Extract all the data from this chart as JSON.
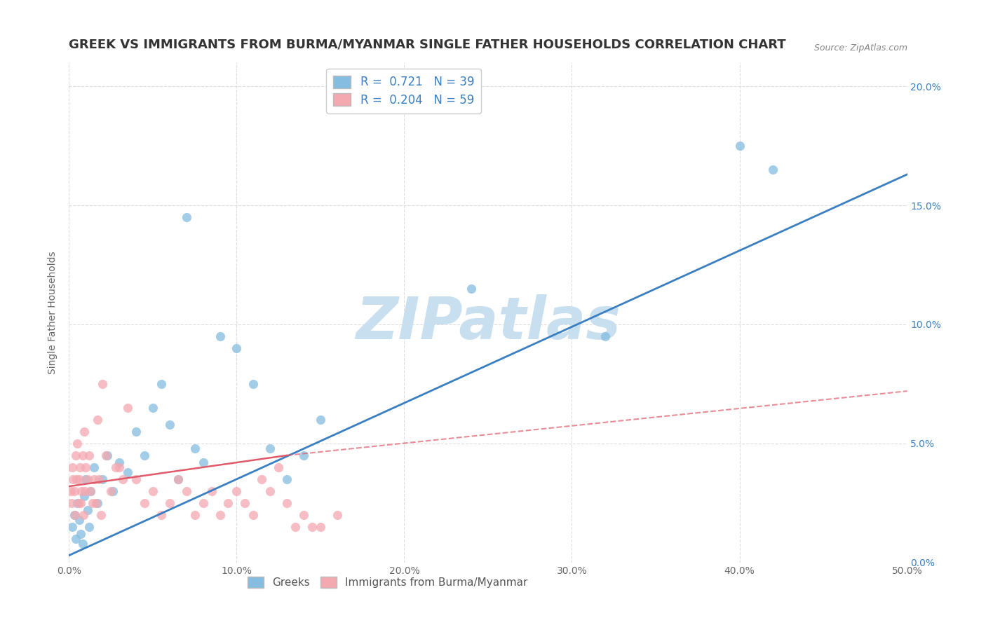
{
  "title": "GREEK VS IMMIGRANTS FROM BURMA/MYANMAR SINGLE FATHER HOUSEHOLDS CORRELATION CHART",
  "source": "Source: ZipAtlas.com",
  "xlabel": "",
  "ylabel": "Single Father Households",
  "xlim": [
    0.0,
    50.0
  ],
  "ylim": [
    0.0,
    21.0
  ],
  "xticks": [
    0.0,
    10.0,
    20.0,
    30.0,
    40.0,
    50.0
  ],
  "yticks": [
    0.0,
    5.0,
    10.0,
    15.0,
    20.0
  ],
  "greek_R": 0.721,
  "greek_N": 39,
  "burma_R": 0.204,
  "burma_N": 59,
  "greek_color": "#85bde0",
  "burma_color": "#f4a8b0",
  "greek_line_color": "#3a7fc1",
  "burma_line_color": "#e05a6a",
  "legend_label_greek": "Greeks",
  "legend_label_burma": "Immigrants from Burma/Myanmar",
  "greek_x": [
    0.2,
    0.3,
    0.4,
    0.5,
    0.6,
    0.7,
    0.8,
    0.9,
    1.0,
    1.1,
    1.2,
    1.3,
    1.5,
    1.7,
    2.0,
    2.3,
    2.6,
    3.0,
    3.5,
    4.0,
    4.5,
    5.0,
    5.5,
    6.0,
    6.5,
    7.0,
    7.5,
    8.0,
    9.0,
    10.0,
    11.0,
    12.0,
    13.0,
    14.0,
    15.0,
    24.0,
    32.0,
    40.0,
    42.0
  ],
  "greek_y": [
    1.5,
    2.0,
    1.0,
    2.5,
    1.8,
    1.2,
    0.8,
    2.8,
    3.5,
    2.2,
    1.5,
    3.0,
    4.0,
    2.5,
    3.5,
    4.5,
    3.0,
    4.2,
    3.8,
    5.5,
    4.5,
    6.5,
    7.5,
    5.8,
    3.5,
    14.5,
    4.8,
    4.2,
    9.5,
    9.0,
    7.5,
    4.8,
    3.5,
    4.5,
    6.0,
    11.5,
    9.5,
    17.5,
    16.5
  ],
  "burma_x": [
    0.1,
    0.15,
    0.2,
    0.25,
    0.3,
    0.35,
    0.4,
    0.45,
    0.5,
    0.55,
    0.6,
    0.65,
    0.7,
    0.75,
    0.8,
    0.85,
    0.9,
    0.95,
    1.0,
    1.1,
    1.2,
    1.3,
    1.4,
    1.5,
    1.6,
    1.7,
    1.8,
    1.9,
    2.0,
    2.2,
    2.5,
    2.8,
    3.0,
    3.2,
    3.5,
    4.0,
    4.5,
    5.0,
    5.5,
    6.0,
    6.5,
    7.0,
    7.5,
    8.0,
    8.5,
    9.0,
    9.5,
    10.0,
    10.5,
    11.0,
    11.5,
    12.0,
    12.5,
    13.0,
    13.5,
    14.0,
    14.5,
    15.0,
    16.0
  ],
  "burma_y": [
    3.0,
    2.5,
    4.0,
    3.5,
    3.0,
    2.0,
    4.5,
    3.5,
    5.0,
    2.5,
    3.5,
    4.0,
    2.5,
    3.0,
    4.5,
    2.0,
    5.5,
    3.0,
    4.0,
    3.5,
    4.5,
    3.0,
    2.5,
    3.5,
    2.5,
    6.0,
    3.5,
    2.0,
    7.5,
    4.5,
    3.0,
    4.0,
    4.0,
    3.5,
    6.5,
    3.5,
    2.5,
    3.0,
    2.0,
    2.5,
    3.5,
    3.0,
    2.0,
    2.5,
    3.0,
    2.0,
    2.5,
    3.0,
    2.5,
    2.0,
    3.5,
    3.0,
    4.0,
    2.5,
    1.5,
    2.0,
    1.5,
    1.5,
    2.0
  ],
  "greek_line_x0": 0.0,
  "greek_line_y0": 0.3,
  "greek_line_x1": 50.0,
  "greek_line_y1": 16.3,
  "burma_solid_x0": 0.0,
  "burma_solid_y0": 3.2,
  "burma_solid_x1": 13.0,
  "burma_solid_y1": 4.5,
  "burma_dash_x0": 13.0,
  "burma_dash_y0": 4.5,
  "burma_dash_x1": 50.0,
  "burma_dash_y1": 7.2,
  "background_color": "#ffffff",
  "grid_color": "#dddddd",
  "title_fontsize": 13,
  "axis_fontsize": 10,
  "tick_fontsize": 10,
  "watermark_text": "ZIPatlas",
  "watermark_color": "#c8dff0",
  "watermark_fontsize": 60
}
